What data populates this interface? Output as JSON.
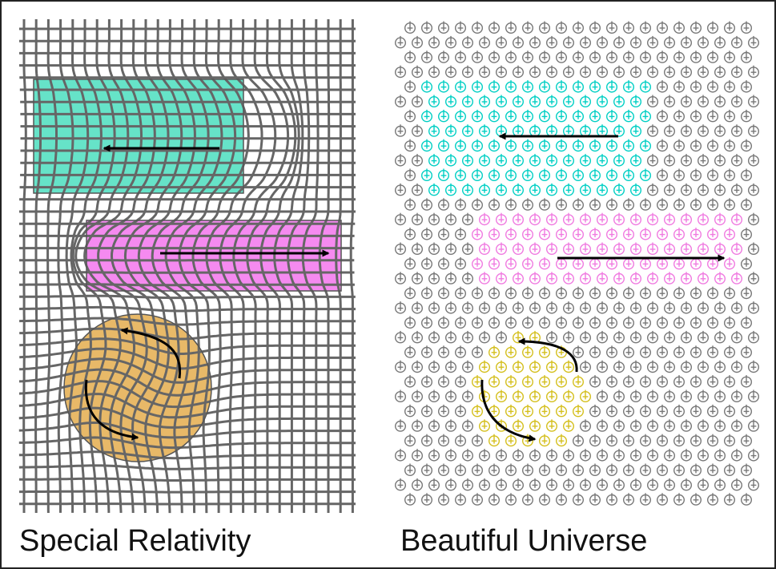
{
  "panels": {
    "left": {
      "caption": "Special Relativity",
      "colors": {
        "grid": "#666666",
        "cyan": "#66e3c8",
        "magenta": "#f58af0",
        "gold": "#e8b968",
        "arrow": "#000000"
      },
      "regions": [
        {
          "shape": "rectangle",
          "fill": "cyan",
          "motion": "left"
        },
        {
          "shape": "rectangle",
          "fill": "magenta",
          "motion": "right"
        },
        {
          "shape": "circle",
          "fill": "gold",
          "motion": "rotation"
        }
      ]
    },
    "right": {
      "caption": "Beautiful Universe",
      "colors": {
        "neutral": "#777777",
        "cyan": "#00cfc4",
        "magenta": "#f07ae0",
        "gold": "#d4bf1c",
        "arrow": "#000000"
      },
      "node_glyph": "circle-with-plus-and-stem",
      "regions": [
        {
          "shape": "block",
          "fill": "cyan",
          "motion": "left"
        },
        {
          "shape": "block",
          "fill": "magenta",
          "motion": "right"
        },
        {
          "shape": "disc",
          "fill": "gold",
          "motion": "rotation"
        }
      ]
    }
  }
}
